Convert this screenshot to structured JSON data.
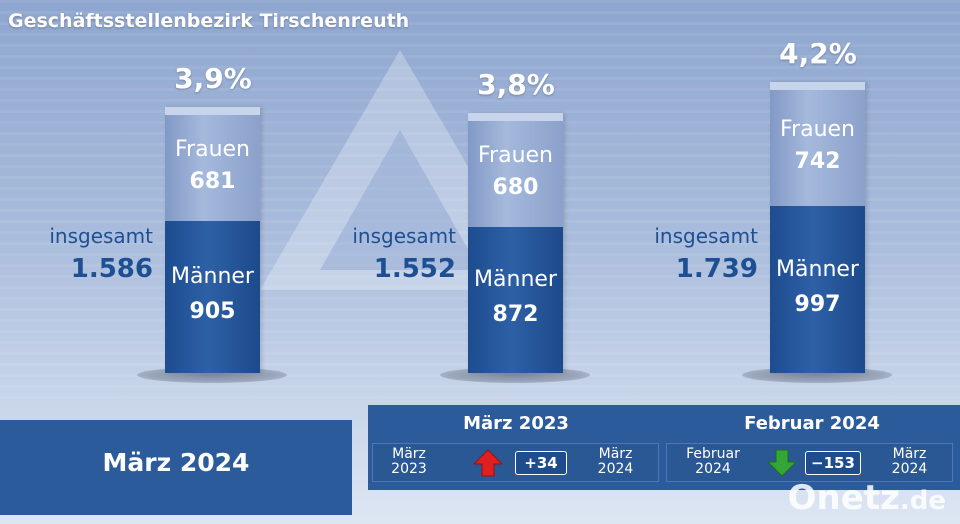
{
  "title": "Geschäftsstellenbezirk Tirschenreuth",
  "chart_data": {
    "type": "bar",
    "columns": [
      {
        "percent": "3,9%",
        "frauen_label": "Frauen",
        "frauen": 681,
        "frauen_text": "681",
        "maenner_label": "Männer",
        "maenner": 905,
        "maenner_text": "905",
        "insgesamt_label": "insgesamt",
        "insgesamt_text": "1.586"
      },
      {
        "percent": "3,8%",
        "frauen_label": "Frauen",
        "frauen": 680,
        "frauen_text": "680",
        "maenner_label": "Männer",
        "maenner": 872,
        "maenner_text": "872",
        "insgesamt_label": "insgesamt",
        "insgesamt_text": "1.552"
      },
      {
        "percent": "4,2%",
        "frauen_label": "Frauen",
        "frauen": 742,
        "frauen_text": "742",
        "maenner_label": "Männer",
        "maenner": 997,
        "maenner_text": "997",
        "insgesamt_label": "insgesamt",
        "insgesamt_text": "1.739"
      }
    ],
    "colors": {
      "frauen": "#9fb3d8",
      "maenner": "#285a9f",
      "text_dark": "#1f4f93",
      "up": "#e02020",
      "down": "#35a535"
    }
  },
  "footer": {
    "main_label": "März 2024",
    "comparisons": [
      {
        "title": "März 2023",
        "from": [
          "März",
          "2023"
        ],
        "to": [
          "März",
          "2024"
        ],
        "direction": "up",
        "delta": "+34"
      },
      {
        "title": "Februar 2024",
        "from": [
          "Februar",
          "2024"
        ],
        "to": [
          "März",
          "2024"
        ],
        "direction": "down",
        "delta": "−153"
      }
    ]
  },
  "watermark": {
    "main": "Onetz",
    "suffix": ".de"
  }
}
